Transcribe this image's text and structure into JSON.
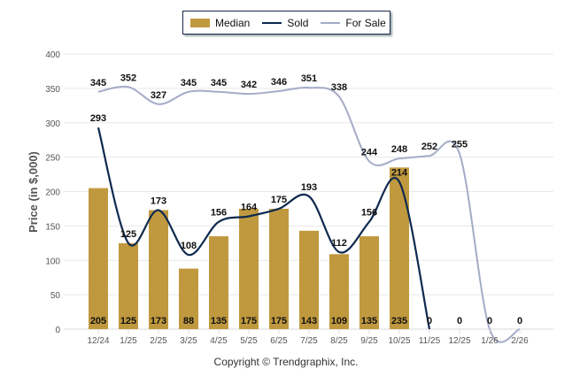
{
  "chart_data": {
    "type": "bar",
    "title": "",
    "xlabel": "",
    "ylabel": "Price (in $,000)",
    "ylim": [
      0,
      400
    ],
    "yticks": [
      0,
      50,
      100,
      150,
      200,
      250,
      300,
      350,
      400
    ],
    "grid": true,
    "legend_position": "top-center",
    "categories": [
      "12/24",
      "1/25",
      "2/25",
      "3/25",
      "4/25",
      "5/25",
      "6/25",
      "7/25",
      "8/25",
      "9/25",
      "10/25",
      "11/25",
      "12/25",
      "1/26",
      "2/26"
    ],
    "series": [
      {
        "name": "Median",
        "type": "bar",
        "color": "#c0993f",
        "values": [
          205,
          125,
          173,
          88,
          135,
          175,
          175,
          143,
          109,
          135,
          235,
          0,
          0,
          0,
          0
        ]
      },
      {
        "name": "Sold",
        "type": "line",
        "color": "#0e2a4f",
        "values": [
          293,
          125,
          173,
          108,
          156,
          164,
          175,
          193,
          112,
          156,
          214,
          0,
          null,
          null,
          null
        ]
      },
      {
        "name": "For Sale",
        "type": "line",
        "color": "#a4abc8",
        "values": [
          345,
          352,
          327,
          345,
          345,
          342,
          346,
          351,
          338,
          244,
          248,
          252,
          255,
          0,
          0
        ]
      }
    ]
  },
  "legend": {
    "items": [
      "Median",
      "Sold",
      "For Sale"
    ]
  },
  "footer": {
    "copyright": "Copyright © Trendgraphix, Inc."
  }
}
